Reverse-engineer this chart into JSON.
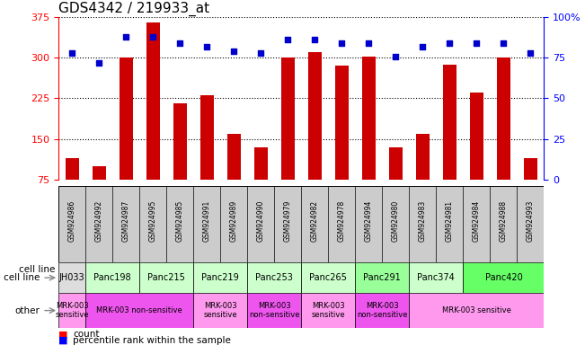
{
  "title": "GDS4342 / 219933_at",
  "samples": [
    "GSM924986",
    "GSM924992",
    "GSM924987",
    "GSM924995",
    "GSM924985",
    "GSM924991",
    "GSM924989",
    "GSM924990",
    "GSM924979",
    "GSM924982",
    "GSM924978",
    "GSM924994",
    "GSM924980",
    "GSM924983",
    "GSM924981",
    "GSM924984",
    "GSM924988",
    "GSM924993"
  ],
  "counts": [
    115,
    100,
    300,
    365,
    215,
    230,
    160,
    135,
    300,
    310,
    285,
    302,
    135,
    160,
    287,
    235,
    300,
    115
  ],
  "percentiles": [
    78,
    72,
    88,
    88,
    84,
    82,
    79,
    78,
    86,
    86,
    84,
    84,
    76,
    82,
    84,
    84,
    84,
    78
  ],
  "cell_lines": [
    {
      "name": "JH033",
      "start": 0,
      "end": 1,
      "color": "#dddddd"
    },
    {
      "name": "Panc198",
      "start": 1,
      "end": 3,
      "color": "#ccffcc"
    },
    {
      "name": "Panc215",
      "start": 3,
      "end": 5,
      "color": "#ccffcc"
    },
    {
      "name": "Panc219",
      "start": 5,
      "end": 7,
      "color": "#ccffcc"
    },
    {
      "name": "Panc253",
      "start": 7,
      "end": 9,
      "color": "#ccffcc"
    },
    {
      "name": "Panc265",
      "start": 9,
      "end": 11,
      "color": "#ccffcc"
    },
    {
      "name": "Panc291",
      "start": 11,
      "end": 13,
      "color": "#99ff99"
    },
    {
      "name": "Panc374",
      "start": 13,
      "end": 15,
      "color": "#ccffcc"
    },
    {
      "name": "Panc420",
      "start": 15,
      "end": 18,
      "color": "#66ff66"
    }
  ],
  "other_groups": [
    {
      "label": "MRK-003\nsensitive",
      "start": 0,
      "end": 1,
      "color": "#ff99ee"
    },
    {
      "label": "MRK-003 non-sensitive",
      "start": 1,
      "end": 5,
      "color": "#ee55ee"
    },
    {
      "label": "MRK-003\nsensitive",
      "start": 5,
      "end": 7,
      "color": "#ff99ee"
    },
    {
      "label": "MRK-003\nnon-sensitive",
      "start": 7,
      "end": 9,
      "color": "#ee55ee"
    },
    {
      "label": "MRK-003\nsensitive",
      "start": 9,
      "end": 11,
      "color": "#ff99ee"
    },
    {
      "label": "MRK-003\nnon-sensitive",
      "start": 11,
      "end": 13,
      "color": "#ee55ee"
    },
    {
      "label": "MRK-003 sensitive",
      "start": 13,
      "end": 18,
      "color": "#ff99ee"
    }
  ],
  "ylim_left": [
    75,
    375
  ],
  "ylim_right": [
    0,
    100
  ],
  "yticks_left": [
    75,
    150,
    225,
    300,
    375
  ],
  "yticks_right": [
    0,
    25,
    50,
    75,
    100
  ],
  "bar_color": "#cc0000",
  "dot_color": "#0000cc",
  "bg_color": "#ffffff",
  "xticklabel_bg": "#cccccc",
  "title_fontsize": 11,
  "tick_fontsize": 7,
  "bar_width": 0.5
}
